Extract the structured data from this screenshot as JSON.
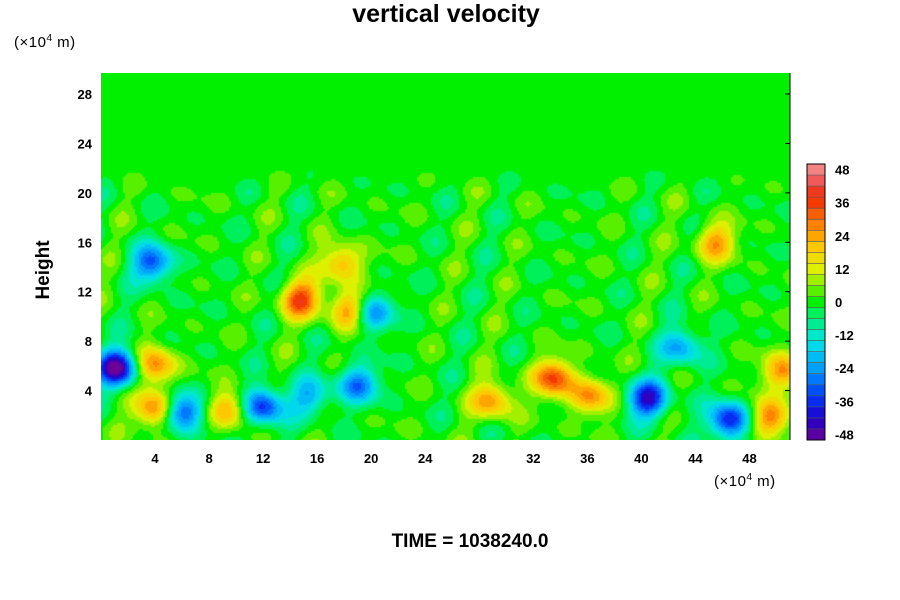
{
  "chart_data": {
    "type": "heatmap",
    "title": "vertical velocity",
    "ylabel": "Height",
    "xunit": {
      "prefix": "(×10",
      "exp": "4",
      "suffix": " m)"
    },
    "yunit": {
      "prefix": "(×10",
      "exp": "4",
      "suffix": " m)"
    },
    "x_ticks": [
      4,
      8,
      12,
      16,
      20,
      24,
      28,
      32,
      36,
      40,
      44,
      48
    ],
    "y_ticks": [
      4,
      8,
      12,
      16,
      20,
      24,
      28
    ],
    "xlim": [
      0,
      51
    ],
    "ylim": [
      0,
      29.7
    ],
    "colorbar": {
      "ticks": [
        48,
        36,
        24,
        12,
        0,
        -12,
        -24,
        -36,
        -48
      ],
      "range": [
        -50,
        50
      ]
    },
    "features": [
      {
        "x": 1.2,
        "y": 5.8,
        "value": -50
      },
      {
        "x": 4,
        "y": 2.5,
        "value": 32
      },
      {
        "x": 4,
        "y": 6.0,
        "value": 28
      },
      {
        "x": 6,
        "y": 2.3,
        "value": -36
      },
      {
        "x": 9.5,
        "y": 2.5,
        "value": 24
      },
      {
        "x": 12,
        "y": 2.7,
        "value": -38
      },
      {
        "x": 14.8,
        "y": 11.4,
        "value": 34
      },
      {
        "x": 17.8,
        "y": 14.3,
        "value": 24
      },
      {
        "x": 18.5,
        "y": 10.5,
        "value": 30
      },
      {
        "x": 20,
        "y": 10.3,
        "value": -30
      },
      {
        "x": 3.8,
        "y": 14.3,
        "value": -32
      },
      {
        "x": 29,
        "y": 3.2,
        "value": 26
      },
      {
        "x": 33.5,
        "y": 5.0,
        "value": 34
      },
      {
        "x": 36.2,
        "y": 3.5,
        "value": 26
      },
      {
        "x": 40.5,
        "y": 3.3,
        "value": -40
      },
      {
        "x": 46.5,
        "y": 1.6,
        "value": -40
      },
      {
        "x": 49.5,
        "y": 1.8,
        "value": 30
      },
      {
        "x": 50.5,
        "y": 5.5,
        "value": 26
      },
      {
        "x": 45.5,
        "y": 16.0,
        "value": 24
      },
      {
        "x": 19,
        "y": 4.5,
        "value": -28
      },
      {
        "x": 15.5,
        "y": 3.5,
        "value": -20
      },
      {
        "x": 43,
        "y": 7.5,
        "value": -24
      }
    ]
  },
  "footer": {
    "time_text": "TIME = 1038240.0"
  }
}
